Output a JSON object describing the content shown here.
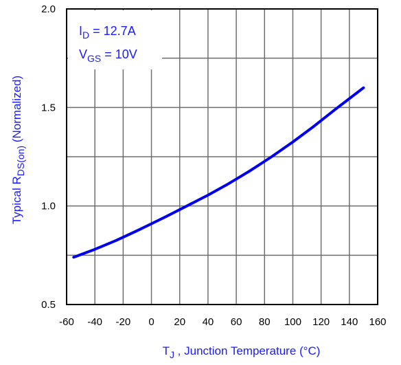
{
  "chart_data": {
    "type": "line",
    "title": "",
    "xlabel": {
      "main": "T",
      "sub": "J",
      "rest": " , Junction Temperature (°C)"
    },
    "ylabel": {
      "pre": "Typical  R",
      "sub": "DS(on)",
      "post": " (Normalized)"
    },
    "xlim": [
      -60,
      160
    ],
    "ylim": [
      0.5,
      2.0
    ],
    "x_ticks": [
      -60,
      -40,
      -20,
      0,
      20,
      40,
      60,
      80,
      100,
      120,
      140,
      160
    ],
    "y_ticks": [
      0.5,
      1.0,
      1.5,
      2.0
    ],
    "y_tick_labels": [
      "0.5",
      "1.0",
      "1.5",
      "2.0"
    ],
    "grid": true,
    "annotations": [
      {
        "main": "I",
        "sub": "D",
        "rest": " = 12.7A"
      },
      {
        "main": "V",
        "sub": "GS",
        "rest": " = 10V"
      }
    ],
    "series": [
      {
        "color": "#0000ee",
        "x": [
          -55,
          -40,
          -25,
          -10,
          0,
          10,
          25,
          40,
          55,
          70,
          85,
          100,
          115,
          130,
          150
        ],
        "y": [
          0.74,
          0.78,
          0.825,
          0.875,
          0.91,
          0.945,
          1.0,
          1.055,
          1.115,
          1.18,
          1.25,
          1.325,
          1.405,
          1.49,
          1.6
        ]
      }
    ]
  }
}
